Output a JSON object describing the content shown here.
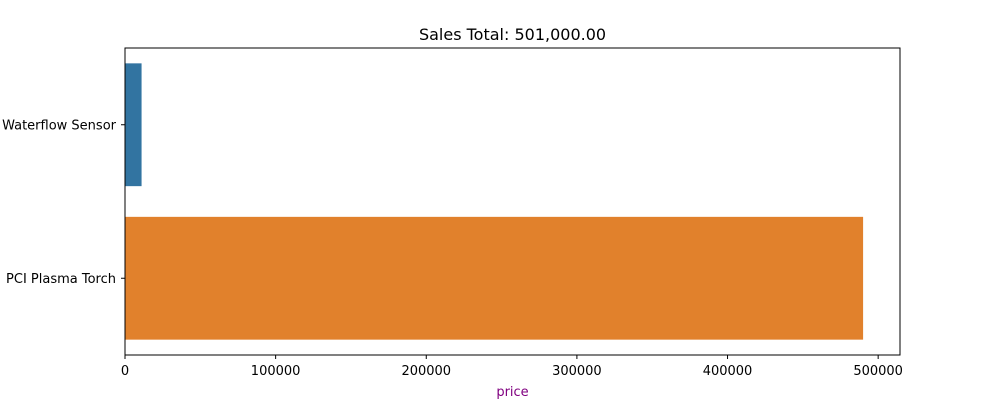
{
  "chart_data": {
    "type": "bar",
    "orientation": "horizontal",
    "title": "Sales Total: 501,000.00",
    "xlabel": "price",
    "ylabel": "",
    "categories": [
      "Waterflow Sensor",
      "PCI Plasma Torch"
    ],
    "values": [
      11000,
      490000
    ],
    "xlim": [
      0,
      514500
    ],
    "xticks": [
      0,
      100000,
      200000,
      300000,
      400000,
      500000
    ],
    "xtick_labels": [
      "0",
      "100000",
      "200000",
      "300000",
      "400000",
      "500000"
    ],
    "grid": false,
    "legend": "none",
    "colors": {
      "bars": [
        "#3274a1",
        "#e1812c"
      ],
      "xlabel": "#800080",
      "axes": "#000000"
    }
  }
}
